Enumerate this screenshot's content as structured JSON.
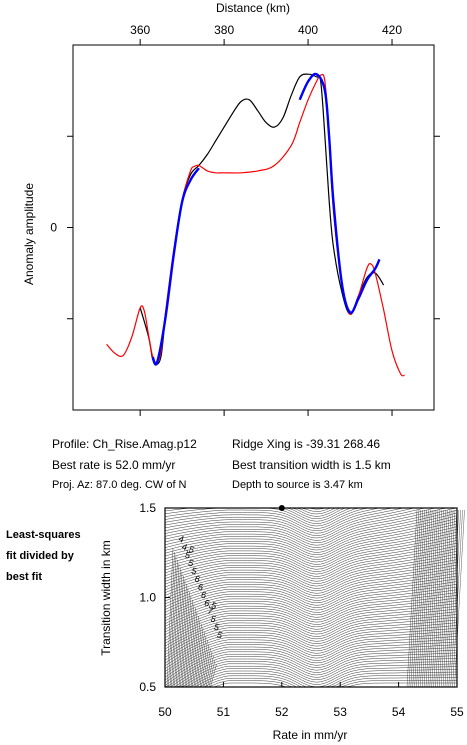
{
  "info": {
    "profile": "Profile: Ch_Rise.Amag.p12",
    "ridge": "Ridge Xing is -39.31 268.46",
    "rate": "Best rate is 52.0 mm/yr",
    "width": "Best transition width is 1.5 km",
    "proj": "Proj. Az: 87.0 deg. CW of N",
    "depth": "Depth to source is   3.47 km"
  },
  "side_label": [
    "Least-squares",
    "fit divided by",
    "best fit"
  ],
  "chart_data": [
    {
      "type": "line",
      "xlabel": "Distance (km)",
      "ylabel": "Anomaly amplitude",
      "xlim": [
        344,
        430
      ],
      "ylim": [
        -200,
        200
      ],
      "x_ticks": [
        360,
        380,
        400,
        420
      ],
      "x_ticks_position": "top",
      "y_ticks": [
        0
      ],
      "grid": false,
      "series": [
        {
          "color": "#000000",
          "x": [
            360,
            362,
            363,
            364,
            365,
            366,
            368,
            370,
            372,
            374,
            376,
            378,
            380,
            382,
            384,
            386,
            388,
            390,
            392,
            394,
            396,
            398,
            400,
            402,
            403,
            404,
            405,
            406,
            408,
            410,
            412,
            414,
            416,
            418
          ],
          "y": [
            -88,
            -120,
            -145,
            -150,
            -140,
            -100,
            -30,
            30,
            58,
            68,
            80,
            95,
            110,
            125,
            138,
            140,
            128,
            115,
            110,
            120,
            145,
            165,
            168,
            165,
            160,
            100,
            30,
            -20,
            -70,
            -95,
            -75,
            -55,
            -50,
            -63
          ]
        },
        {
          "color": "#ff0000",
          "x": [
            352,
            354,
            356,
            358,
            360,
            361,
            362,
            363,
            364,
            365,
            366,
            368,
            370,
            372,
            373,
            374,
            376,
            378,
            380,
            384,
            388,
            392,
            396,
            398,
            400,
            402,
            403,
            404,
            405,
            406,
            408,
            410,
            412,
            414,
            415,
            416,
            418,
            420,
            422,
            423
          ],
          "y": [
            -128,
            -138,
            -140,
            -120,
            -88,
            -92,
            -118,
            -142,
            -148,
            -135,
            -95,
            -25,
            30,
            62,
            67,
            68,
            62,
            60,
            60,
            60,
            62,
            68,
            90,
            115,
            140,
            160,
            167,
            160,
            100,
            20,
            -60,
            -95,
            -75,
            -45,
            -40,
            -50,
            -90,
            -135,
            -160,
            -162
          ]
        },
        {
          "color": "#0000ff",
          "x": [
            363,
            364,
            366,
            368,
            370,
            372,
            374,
            398,
            400,
            402,
            404,
            405,
            406,
            408,
            410,
            412,
            414,
            416,
            417
          ],
          "y": [
            -142,
            -148,
            -100,
            -30,
            28,
            52,
            65,
            140,
            160,
            168,
            150,
            100,
            30,
            -60,
            -93,
            -78,
            -58,
            -45,
            -35
          ]
        }
      ]
    },
    {
      "type": "heatmap",
      "subtype": "contour",
      "xlabel": "Rate in mm/yr",
      "ylabel": "Transition width in km",
      "xlim": [
        50,
        55
      ],
      "ylim": [
        0.5,
        1.5
      ],
      "x_ticks": [
        50,
        51,
        52,
        53,
        54,
        55
      ],
      "y_ticks": [
        0.5,
        1.0,
        1.5
      ],
      "best_fit": {
        "x": 52.0,
        "y": 1.5
      },
      "contour_labels": [
        "4",
        "4.5",
        "5",
        "5",
        "5",
        "6",
        "6",
        "6",
        "6.5",
        "7",
        "5",
        "5",
        "5"
      ]
    }
  ]
}
